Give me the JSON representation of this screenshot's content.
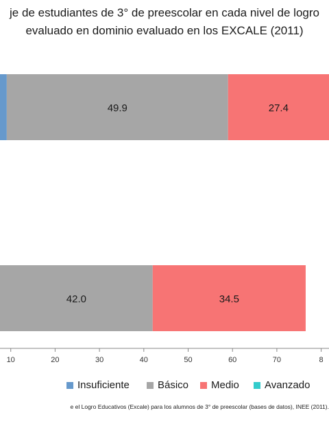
{
  "chart_data": {
    "type": "bar",
    "orientation": "horizontal",
    "stacked": true,
    "title_lines": [
      "je de estudiantes  de 3° de preescolar  en cada nivel de logro",
      "evaluado   en dominio evaluado  en los EXCALE (2011)"
    ],
    "x_ticks": [
      "10",
      "20",
      "30",
      "40",
      "50",
      "60",
      "70",
      "8"
    ],
    "xlim": [
      0,
      82
    ],
    "grid": false,
    "legend_position": "bottom",
    "series": [
      {
        "name": "Insuficiente",
        "color": "#6699cc",
        "values": [
          9.1,
          null
        ]
      },
      {
        "name": "Básico",
        "color": "#a6a6a6",
        "values": [
          49.9,
          42.0
        ]
      },
      {
        "name": "Medio",
        "color": "#f77474",
        "values": [
          27.4,
          34.5
        ]
      },
      {
        "name": "Avanzado",
        "color": "#33cccc",
        "values": [
          null,
          null
        ]
      }
    ],
    "data_labels": [
      [
        "",
        "49.9",
        "27.4",
        ""
      ],
      [
        "",
        "42.0",
        "34.5",
        ""
      ]
    ],
    "source": "e el Logro Educativos (Excale) para los alumnos de 3° de preescolar (bases de datos), INEE (2011)."
  }
}
